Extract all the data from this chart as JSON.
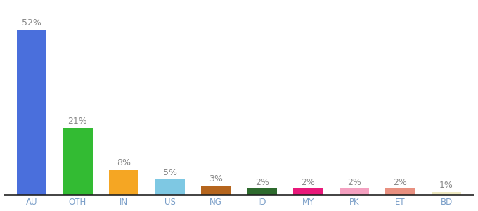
{
  "categories": [
    "AU",
    "OTH",
    "IN",
    "US",
    "NG",
    "ID",
    "MY",
    "PK",
    "ET",
    "BD"
  ],
  "values": [
    52,
    21,
    8,
    5,
    3,
    2,
    2,
    2,
    2,
    1
  ],
  "bar_colors": [
    "#4a6fdc",
    "#33bb33",
    "#f5a623",
    "#7ec8e3",
    "#b5651d",
    "#2d6a2d",
    "#e8197a",
    "#f4a0c0",
    "#e89080",
    "#ede8c0"
  ],
  "labels": [
    "52%",
    "21%",
    "8%",
    "5%",
    "3%",
    "2%",
    "2%",
    "2%",
    "2%",
    "1%"
  ],
  "ylim": [
    0,
    60
  ],
  "background_color": "#ffffff",
  "label_fontsize": 9,
  "tick_fontsize": 8.5,
  "label_color": "#888888",
  "tick_color": "#7a9ec8",
  "bar_width": 0.65
}
